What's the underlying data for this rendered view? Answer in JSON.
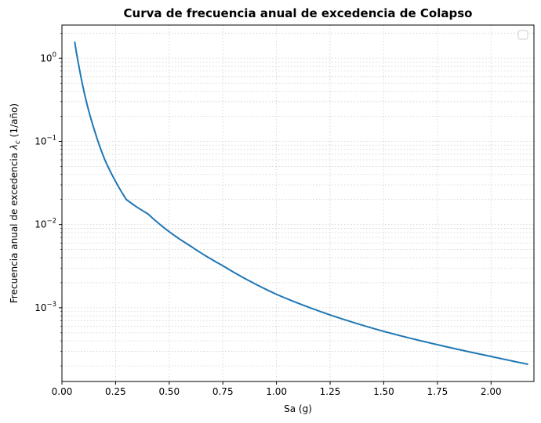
{
  "chart_data": {
    "type": "line",
    "title": "Curva de frecuencia anual de excedencia de Colapso",
    "xlabel": "Sa (g)",
    "ylabel_text": "Frecuencia anual de excedencia ",
    "ylabel_symbol": "λ",
    "ylabel_subscript": "c",
    "ylabel_units": "  (1/año)",
    "x_scale": "linear",
    "y_scale": "log",
    "xlim": [
      0.0,
      2.2
    ],
    "ylim": [
      0.00013,
      2.5
    ],
    "x_ticks": [
      0.0,
      0.25,
      0.5,
      0.75,
      1.0,
      1.25,
      1.5,
      1.75,
      2.0
    ],
    "x_tick_labels": [
      "0.00",
      "0.25",
      "0.50",
      "0.75",
      "1.00",
      "1.25",
      "1.50",
      "1.75",
      "2.00"
    ],
    "y_ticks": [
      0.001,
      0.01,
      0.1,
      1
    ],
    "y_tick_labels": [
      {
        "base": "10",
        "exp": "−3"
      },
      {
        "base": "10",
        "exp": "−2"
      },
      {
        "base": "10",
        "exp": "−1"
      },
      {
        "base": "10",
        "exp": "0"
      }
    ],
    "grid": true,
    "legend": "top-right (empty)",
    "series": [
      {
        "color": "#1f77b4",
        "x": [
          0.06,
          0.08,
          0.1,
          0.12,
          0.15,
          0.2,
          0.25,
          0.3,
          0.4,
          0.5,
          0.6,
          0.75,
          1.0,
          1.25,
          1.5,
          1.75,
          2.0,
          2.17
        ],
        "y": [
          1.55,
          0.78,
          0.43,
          0.26,
          0.14,
          0.06,
          0.033,
          0.02,
          0.0135,
          0.0082,
          0.0055,
          0.0032,
          0.00145,
          0.00082,
          0.00052,
          0.00036,
          0.00026,
          0.00021
        ]
      }
    ]
  }
}
